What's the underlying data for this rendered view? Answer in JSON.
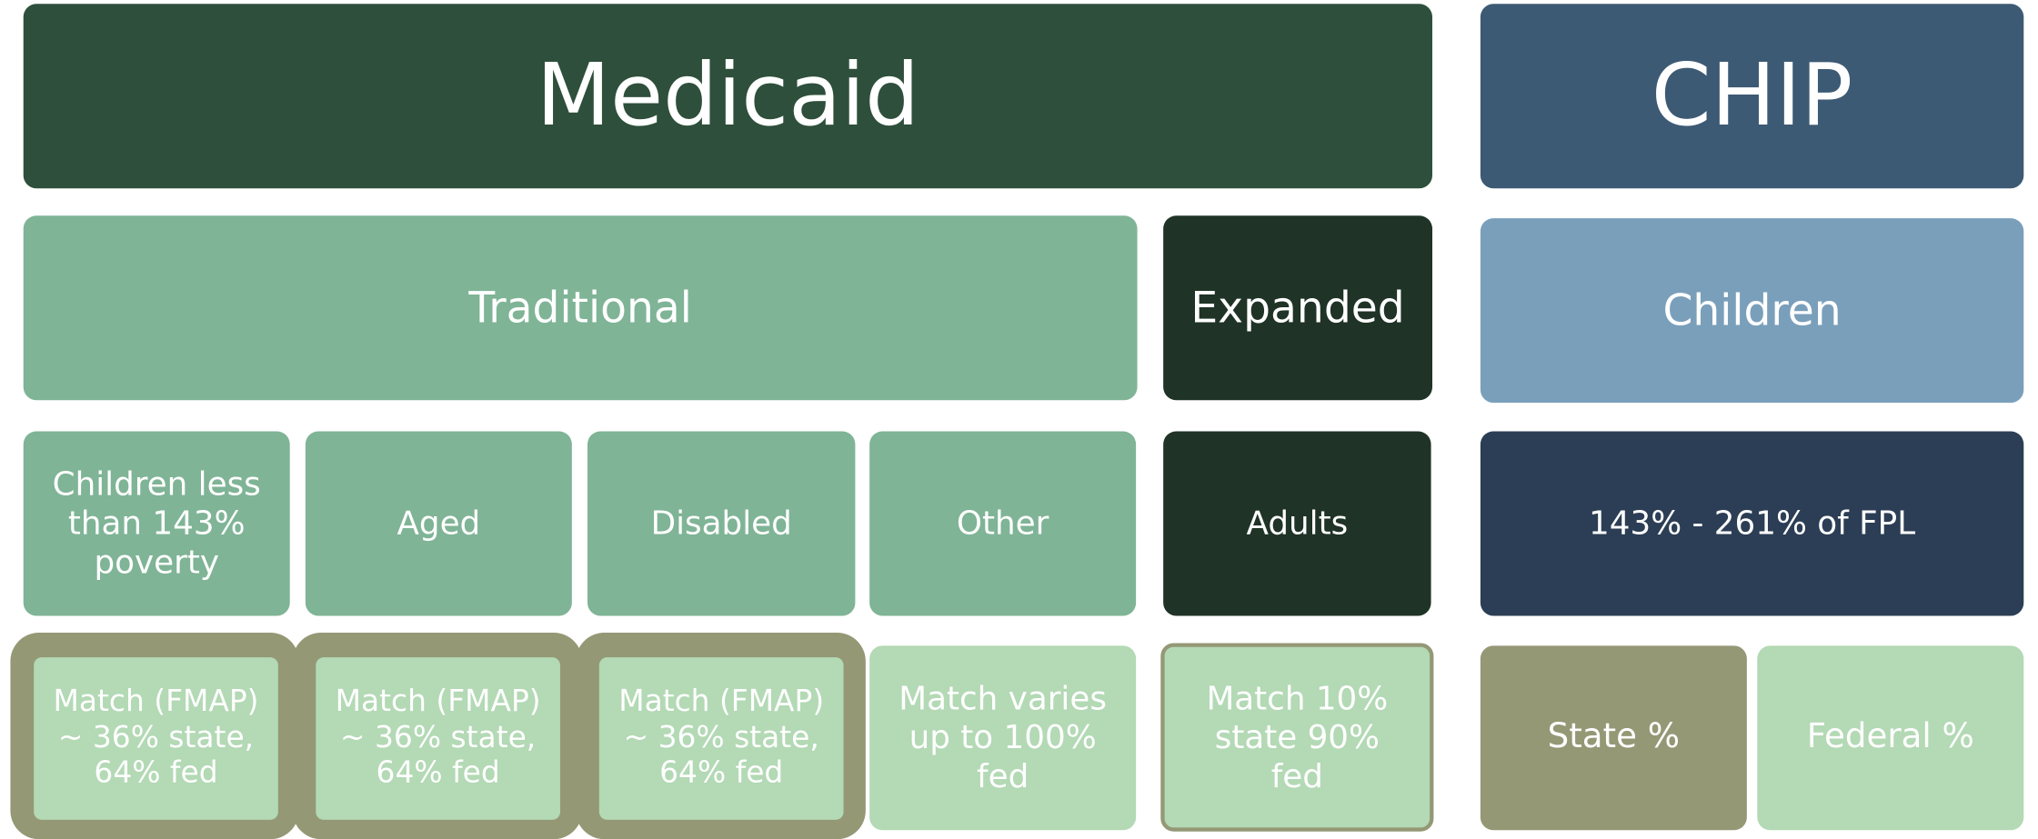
{
  "medicaid": {
    "title": "Medicaid",
    "groups": {
      "traditional": "Traditional",
      "expanded": "Expanded"
    },
    "populations": [
      "Children less than 143% poverty",
      "Aged",
      "Disabled",
      "Other",
      "Adults"
    ],
    "funding": [
      "Match (FMAP) ~ 36% state, 64% fed",
      "Match (FMAP) ~ 36% state, 64% fed",
      "Match (FMAP) ~ 36% state, 64% fed",
      "Match varies up to 100% fed",
      "Match 10% state 90% fed"
    ]
  },
  "chip": {
    "title": "CHIP",
    "group": "Children",
    "population": "143% - 261% of FPL",
    "funding": [
      "State %",
      "Federal %"
    ]
  }
}
